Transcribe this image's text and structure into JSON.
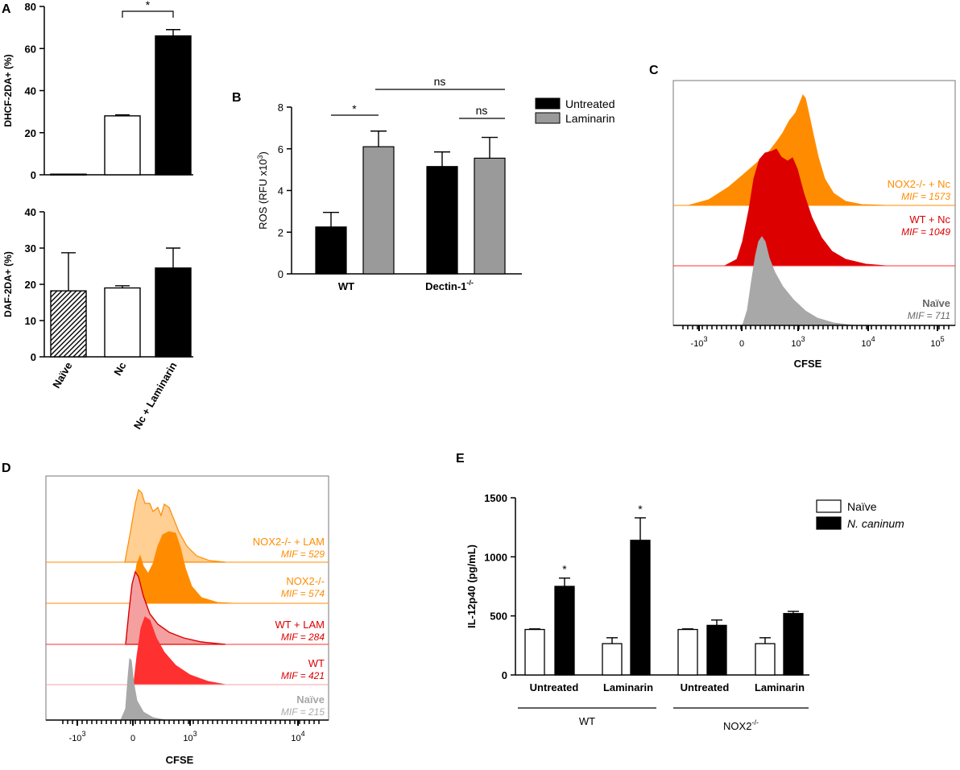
{
  "colors": {
    "black": "#000000",
    "grey": "#9a9a9a",
    "darkgrey": "#666666",
    "orange": "#ff8c00",
    "orange_light": "#ffcf94",
    "red": "#dd0000",
    "red_bright": "#ff3030",
    "red_light": "#f4a0a0",
    "naive_grey": "#a8a8a8"
  },
  "chart_data": [
    {
      "id": "A_top",
      "panel": "A",
      "type": "bar",
      "ylabel": "DHCF-2DA+ (%)",
      "ylim": [
        0,
        80
      ],
      "yticks": [
        "0",
        "20",
        "40",
        "60",
        "80"
      ],
      "categories": [
        "Naïve",
        "Nc",
        "Nc + Laminarin"
      ],
      "values": [
        0.3,
        28,
        66
      ],
      "errors": [
        0,
        0.5,
        3
      ],
      "fills": [
        "white",
        "white",
        "black"
      ],
      "significance": [
        {
          "from": 1,
          "to": 2,
          "label": "*"
        }
      ]
    },
    {
      "id": "A_bottom",
      "panel": "A",
      "type": "bar",
      "ylabel": "DAF-2DA+ (%)",
      "ylim": [
        0,
        40
      ],
      "yticks": [
        "0",
        "10",
        "20",
        "30",
        "40"
      ],
      "categories": [
        "Naïve",
        "Nc",
        "Nc + Laminarin"
      ],
      "values": [
        18.2,
        19,
        24.5
      ],
      "errors": [
        10.5,
        0.6,
        5.5
      ],
      "fills": [
        "hatch",
        "white",
        "black"
      ]
    },
    {
      "id": "B",
      "panel": "B",
      "type": "bar",
      "ylabel_parts": [
        "ROS (RFU x10",
        "3",
        ")"
      ],
      "ylim": [
        0,
        8
      ],
      "yticks": [
        "0",
        "2",
        "4",
        "6",
        "8"
      ],
      "groups": [
        "WT",
        "Dectin-1"
      ],
      "group_suffix": "-/-",
      "series": [
        {
          "name": "Untreated",
          "values": [
            2.25,
            5.15
          ],
          "errors": [
            0.7,
            0.7
          ]
        },
        {
          "name": "Laminarin",
          "values": [
            6.1,
            5.55
          ],
          "errors": [
            0.75,
            1.0
          ]
        }
      ],
      "significance": [
        "*",
        "ns",
        "ns"
      ]
    },
    {
      "id": "C",
      "panel": "C",
      "type": "histogram-overlay",
      "xlabel": "CFSE",
      "xticks": [
        {
          "base": "-10",
          "exp": "3"
        },
        {
          "base": "0",
          "exp": ""
        },
        {
          "base": "10",
          "exp": "3"
        },
        {
          "base": "10",
          "exp": "4"
        },
        {
          "base": "10",
          "exp": "5"
        }
      ],
      "tracks": [
        {
          "label": "NOX2-/- + Nc",
          "mif": "MIF = 1573"
        },
        {
          "label": "WT + Nc",
          "mif": "MIF = 1049"
        },
        {
          "label": "Naïve",
          "mif": "MIF = 711"
        }
      ]
    },
    {
      "id": "D",
      "panel": "D",
      "type": "histogram-overlay",
      "xlabel": "CFSE",
      "xticks": [
        {
          "base": "-10",
          "exp": "3"
        },
        {
          "base": "0",
          "exp": ""
        },
        {
          "base": "10",
          "exp": "3"
        },
        {
          "base": "10",
          "exp": "4"
        }
      ],
      "tracks": [
        {
          "label": "NOX2-/- + LAM",
          "mif": "MIF = 529"
        },
        {
          "label": "NOX2-/-",
          "mif": "MIF = 574"
        },
        {
          "label": "WT + LAM",
          "mif": "MIF = 284"
        },
        {
          "label": "WT",
          "mif": "MIF = 421"
        },
        {
          "label": "Naïve",
          "mif": "MIF = 215"
        }
      ]
    },
    {
      "id": "E",
      "panel": "E",
      "type": "bar",
      "ylabel": "IL-12p40 (pg/mL)",
      "ylim": [
        0,
        1500
      ],
      "yticks": [
        "0",
        "500",
        "1000",
        "1500"
      ],
      "categories": [
        "Untreated",
        "Laminarin",
        "Untreated",
        "Laminarin"
      ],
      "supergroups": [
        {
          "label": "WT",
          "suffix": ""
        },
        {
          "label": "NOX2",
          "suffix": "-/-"
        }
      ],
      "series": [
        {
          "name": "Naïve",
          "values": [
            385,
            265,
            385,
            265
          ],
          "errors": [
            5,
            50,
            5,
            50
          ]
        },
        {
          "name": "N. caninum",
          "values": [
            750,
            1140,
            420,
            520
          ],
          "errors": [
            70,
            190,
            45,
            18
          ]
        }
      ],
      "significance": [
        "*",
        "*",
        "",
        ""
      ]
    }
  ]
}
